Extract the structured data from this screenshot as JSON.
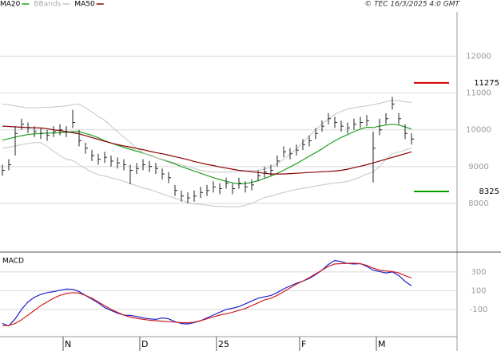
{
  "watermark": "© TEC 16/3/2025 4:0 GMT",
  "chart_data": [
    {
      "type": "ohlc",
      "ylim": [
        6700,
        13200
      ],
      "yticks": [
        8000,
        9000,
        10000,
        11000,
        12000
      ],
      "grid": true,
      "bar_color": "#222222",
      "close": [
        8900,
        9050,
        9900,
        10150,
        10050,
        9950,
        9900,
        9850,
        9950,
        10000,
        9950,
        10200,
        9700,
        9500,
        9300,
        9200,
        9250,
        9150,
        9100,
        9050,
        8900,
        8950,
        9050,
        9000,
        8950,
        8800,
        8700,
        8350,
        8200,
        8150,
        8200,
        8300,
        8350,
        8450,
        8400,
        8550,
        8400,
        8550,
        8450,
        8500,
        8750,
        8850,
        8900,
        9150,
        9400,
        9350,
        9450,
        9600,
        9700,
        9900,
        10100,
        10300,
        10200,
        10100,
        10050,
        10150,
        10200,
        10250,
        9500,
        10000,
        10300,
        10700,
        10300,
        9900,
        9750
      ],
      "high": [
        9050,
        9200,
        10100,
        10300,
        10200,
        10100,
        10050,
        10000,
        10100,
        10150,
        10100,
        10540,
        10000,
        9650,
        9450,
        9350,
        9400,
        9300,
        9250,
        9200,
        9050,
        9100,
        9200,
        9150,
        9100,
        8950,
        8850,
        8500,
        8350,
        8300,
        8350,
        8450,
        8500,
        8600,
        8550,
        8700,
        8550,
        8700,
        8600,
        8650,
        8900,
        9000,
        9050,
        9300,
        9550,
        9500,
        9600,
        9750,
        9850,
        10050,
        10250,
        10450,
        10350,
        10250,
        10200,
        10300,
        10350,
        10400,
        9950,
        10300,
        10450,
        10890,
        10450,
        10150,
        9900
      ],
      "low": [
        8750,
        8900,
        9300,
        10000,
        9900,
        9800,
        9750,
        9700,
        9800,
        9850,
        9800,
        10050,
        9550,
        9350,
        9150,
        9050,
        9100,
        9000,
        8950,
        8900,
        8520,
        8800,
        8900,
        8850,
        8800,
        8650,
        8550,
        8200,
        8050,
        8000,
        8050,
        8150,
        8200,
        8300,
        8250,
        8400,
        8250,
        8400,
        8300,
        8350,
        8600,
        8700,
        8750,
        9000,
        9250,
        9200,
        9300,
        9450,
        9550,
        9750,
        9950,
        10150,
        10050,
        9950,
        9900,
        10000,
        10050,
        10100,
        8570,
        9850,
        10150,
        10550,
        10150,
        9750,
        9600
      ],
      "series": [
        {
          "name": "MA20",
          "color": "#1fa01f",
          "values": [
            9720,
            9760,
            9800,
            9840,
            9870,
            9890,
            9900,
            9910,
            9910,
            9920,
            9930,
            9950,
            9950,
            9900,
            9850,
            9780,
            9700,
            9640,
            9580,
            9520,
            9470,
            9420,
            9370,
            9310,
            9250,
            9190,
            9130,
            9070,
            9000,
            8940,
            8880,
            8820,
            8760,
            8700,
            8650,
            8600,
            8560,
            8530,
            8540,
            8570,
            8620,
            8680,
            8740,
            8820,
            8900,
            8990,
            9080,
            9180,
            9280,
            9380,
            9480,
            9600,
            9700,
            9790,
            9870,
            9950,
            10020,
            10070,
            10060,
            10100,
            10130,
            10150,
            10130,
            10080,
            10020
          ]
        },
        {
          "name": "BBands",
          "color": "#c4c4c4",
          "upper": [
            10700,
            10680,
            10650,
            10620,
            10600,
            10600,
            10600,
            10610,
            10620,
            10640,
            10650,
            10680,
            10700,
            10600,
            10480,
            10360,
            10260,
            10100,
            9950,
            9800,
            9650,
            9500,
            9380,
            9300,
            9250,
            9200,
            9150,
            9100,
            9050,
            9000,
            8950,
            8900,
            8870,
            8850,
            8850,
            8850,
            8860,
            8870,
            8880,
            8890,
            8900,
            8930,
            8990,
            9080,
            9200,
            9330,
            9480,
            9650,
            9830,
            10000,
            10150,
            10300,
            10420,
            10500,
            10560,
            10600,
            10630,
            10650,
            10680,
            10720,
            10760,
            10800,
            10790,
            10760,
            10740
          ],
          "lower": [
            9500,
            9520,
            9560,
            9600,
            9630,
            9650,
            9650,
            9550,
            9420,
            9300,
            9200,
            9170,
            9050,
            8950,
            8850,
            8780,
            8740,
            8700,
            8650,
            8600,
            8540,
            8480,
            8420,
            8380,
            8320,
            8260,
            8200,
            8140,
            8080,
            8030,
            7990,
            7970,
            7950,
            7930,
            7920,
            7910,
            7910,
            7920,
            7950,
            8000,
            8080,
            8160,
            8200,
            8250,
            8300,
            8340,
            8380,
            8410,
            8440,
            8470,
            8500,
            8530,
            8560,
            8570,
            8600,
            8650,
            8720,
            8800,
            8850,
            9000,
            9200,
            9350,
            9390,
            9450,
            9500
          ]
        },
        {
          "name": "MA50",
          "color": "#8b0000",
          "values": [
            10100,
            10090,
            10080,
            10070,
            10060,
            10055,
            10050,
            10030,
            10000,
            9980,
            9950,
            9920,
            9890,
            9840,
            9790,
            9740,
            9690,
            9640,
            9600,
            9560,
            9530,
            9490,
            9460,
            9420,
            9380,
            9350,
            9310,
            9270,
            9230,
            9190,
            9140,
            9100,
            9060,
            9030,
            8990,
            8960,
            8930,
            8900,
            8880,
            8860,
            8840,
            8820,
            8800,
            8800,
            8800,
            8810,
            8820,
            8830,
            8840,
            8850,
            8860,
            8870,
            8880,
            8900,
            8930,
            8970,
            9010,
            9050,
            9100,
            9150,
            9200,
            9250,
            9300,
            9350,
            9400
          ]
        }
      ],
      "levels": [
        {
          "value": 11275,
          "color": "#cc0000"
        },
        {
          "value": 8325,
          "color": "#00a000"
        }
      ]
    },
    {
      "type": "line",
      "title": "MACD",
      "ylim": [
        -390,
        495
      ],
      "yticks": [
        300,
        100,
        -100
      ],
      "grid": true,
      "categories": [
        null,
        null,
        null,
        null,
        null,
        null,
        null,
        null,
        null,
        null,
        "N",
        null,
        null,
        null,
        null,
        null,
        null,
        null,
        null,
        null,
        null,
        null,
        "D",
        null,
        null,
        null,
        null,
        null,
        null,
        null,
        null,
        null,
        null,
        null,
        "25",
        null,
        null,
        null,
        null,
        null,
        null,
        null,
        null,
        null,
        null,
        null,
        null,
        "F",
        null,
        null,
        null,
        null,
        null,
        null,
        null,
        null,
        null,
        null,
        null,
        "M",
        null,
        null,
        null,
        null,
        null
      ],
      "series": [
        {
          "color": "#2020d0",
          "values": [
            -249,
            -274,
            -200,
            -100,
            -20,
            30,
            60,
            80,
            90,
            105,
            117,
            115,
            90,
            50,
            10,
            -30,
            -80,
            -110,
            -140,
            -160,
            -164,
            -175,
            -190,
            -200,
            -206,
            -190,
            -200,
            -230,
            -250,
            -255,
            -240,
            -220,
            -190,
            -160,
            -130,
            -100,
            -87,
            -70,
            -40,
            -10,
            20,
            35,
            49,
            80,
            120,
            150,
            180,
            202,
            230,
            270,
            320,
            380,
            423,
            410,
            390,
            385,
            389,
            360,
            320,
            304,
            290,
            300,
            262,
            200,
            151
          ]
        },
        {
          "color": "#d02020",
          "values": [
            -274,
            -270,
            -250,
            -210,
            -160,
            -110,
            -60,
            -20,
            20,
            50,
            70,
            80,
            74,
            50,
            20,
            -20,
            -60,
            -100,
            -130,
            -160,
            -181,
            -195,
            -205,
            -215,
            -220,
            -225,
            -230,
            -235,
            -240,
            -242,
            -235,
            -220,
            -200,
            -180,
            -160,
            -147,
            -130,
            -110,
            -90,
            -60,
            -30,
            2,
            20,
            50,
            90,
            130,
            170,
            202,
            240,
            280,
            320,
            360,
            385,
            389,
            392,
            395,
            389,
            370,
            340,
            320,
            310,
            304,
            290,
            260,
            236
          ]
        }
      ]
    }
  ]
}
